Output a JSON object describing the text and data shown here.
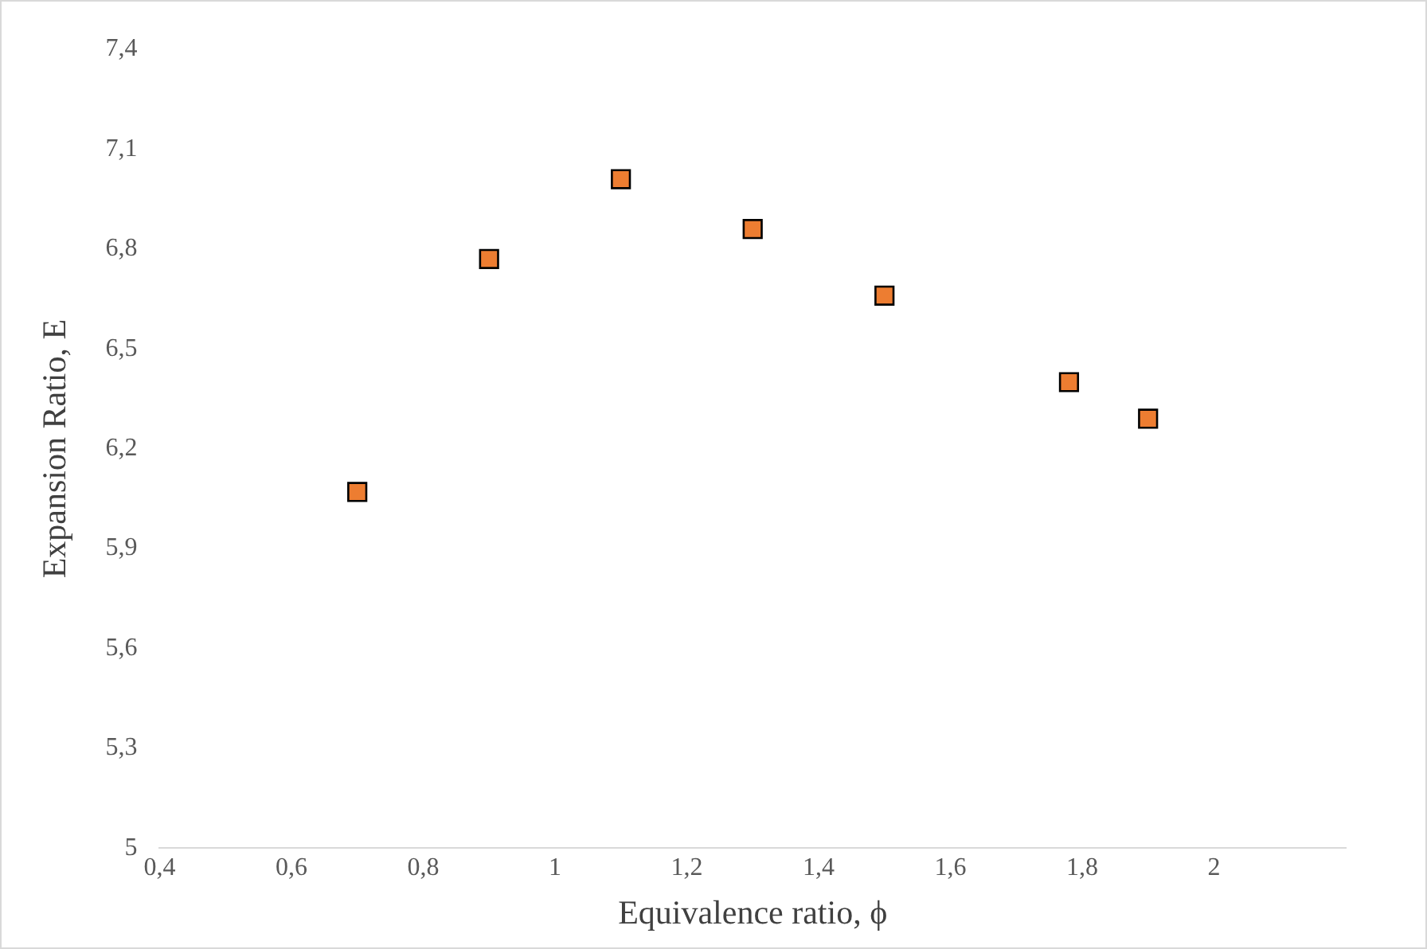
{
  "chart_data": {
    "type": "scatter",
    "xlabel": "Equivalence ratio, ϕ",
    "ylabel": "Expansion Ratio, E",
    "x": [
      0.7,
      0.9,
      1.1,
      1.3,
      1.5,
      1.78,
      1.9
    ],
    "series": [
      {
        "color": "#ed7d31",
        "values": [
          6.07,
          6.77,
          7.01,
          6.86,
          6.66,
          6.4,
          6.29
        ]
      }
    ],
    "xlim": [
      0.4,
      2.2
    ],
    "ylim": [
      5,
      7.4
    ],
    "xticks": [
      {
        "value": 0.4,
        "label": "0,4"
      },
      {
        "value": 0.6,
        "label": "0,6"
      },
      {
        "value": 0.8,
        "label": "0,8"
      },
      1,
      {
        "value": 1.2,
        "label": "1,2"
      },
      {
        "value": 1.4,
        "label": "1,4"
      },
      {
        "value": 1.6,
        "label": "1,6"
      },
      {
        "value": 1.8,
        "label": "1,8"
      },
      2
    ],
    "yticks": [
      5,
      {
        "value": 5.3,
        "label": "5,3"
      },
      {
        "value": 5.6,
        "label": "5,6"
      },
      {
        "value": 5.9,
        "label": "5,9"
      },
      {
        "value": 6.2,
        "label": "6,2"
      },
      {
        "value": 6.5,
        "label": "6,5"
      },
      {
        "value": 6.8,
        "label": "6,8"
      },
      {
        "value": 7.1,
        "label": "7,1"
      },
      {
        "value": 7.4,
        "label": "7,4"
      }
    ],
    "grid": false,
    "legend": false,
    "marker": "square"
  }
}
